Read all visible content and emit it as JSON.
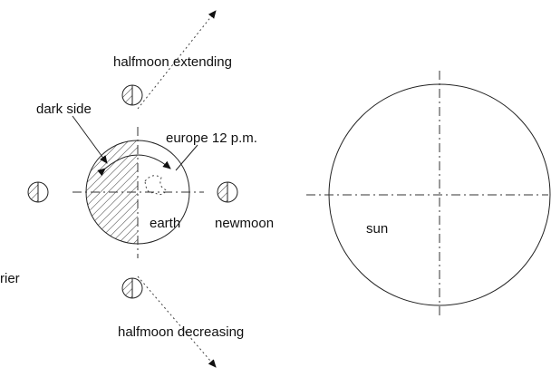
{
  "labels": {
    "halfmoon_extending": "halfmoon extending",
    "dark_side": "dark side",
    "europe": "europe 12 p.m.",
    "earth": "earth",
    "newmoon": "newmoon",
    "sun": "sun",
    "carrier": "rier",
    "halfmoon_decreasing": "halfmoon decreasing"
  }
}
